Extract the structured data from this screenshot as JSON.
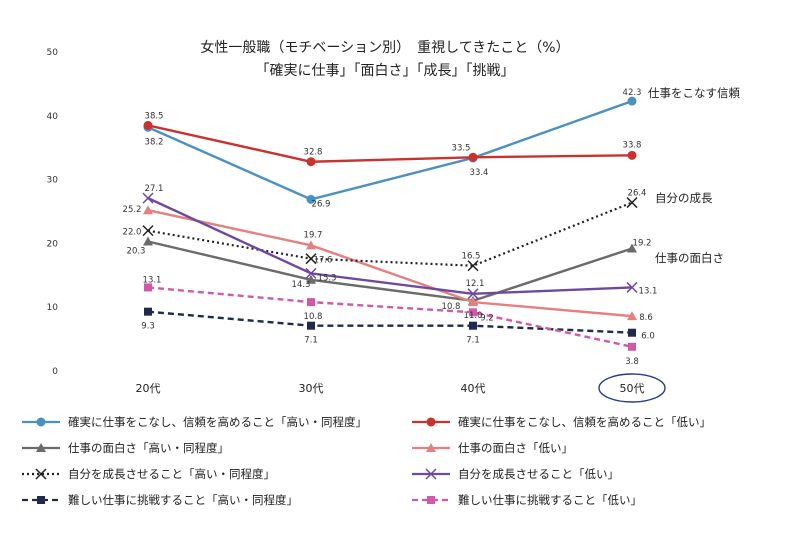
{
  "chart_data": {
    "type": "line",
    "title": "女性一般職（モチベーション別）　重視してきたこと（%）",
    "subtitle": "「確実に仕事」「面白さ」「成長」「挑戦」",
    "categories": [
      "20代",
      "30代",
      "40代",
      "50代"
    ],
    "highlighted_category": "50代",
    "ylim": [
      0,
      50
    ],
    "yticks": [
      0,
      10,
      20,
      30,
      40,
      50
    ],
    "grid": false,
    "legend_position": "bottom",
    "series": [
      {
        "name": "確実に仕事をこなし、信頼を高めること「高い・同程度」",
        "values": [
          38.2,
          26.9,
          33.4,
          42.3
        ],
        "color": "#4a90c0",
        "marker": "circle",
        "dash": "solid"
      },
      {
        "name": "確実に仕事をこなし、信頼を高めること「低い」",
        "values": [
          38.5,
          32.8,
          33.5,
          33.8
        ],
        "color": "#c9322f",
        "marker": "circle",
        "dash": "solid"
      },
      {
        "name": "仕事の面白さ「高い・同程度」",
        "values": [
          20.3,
          14.3,
          11.0,
          19.2
        ],
        "color": "#6b6b6b",
        "marker": "triangle",
        "dash": "solid"
      },
      {
        "name": "仕事の面白さ「低い」",
        "values": [
          25.2,
          19.7,
          10.8,
          8.6
        ],
        "color": "#e58080",
        "marker": "triangle",
        "dash": "solid"
      },
      {
        "name": "自分を成長させること「高い・同程度」",
        "values": [
          22.0,
          17.6,
          16.5,
          26.4
        ],
        "color": "#222222",
        "marker": "x",
        "dash": "dotted"
      },
      {
        "name": "自分を成長させること「低い」",
        "values": [
          27.1,
          15.3,
          12.1,
          13.1
        ],
        "color": "#6e4a9e",
        "marker": "x",
        "dash": "solid"
      },
      {
        "name": "難しい仕事に挑戦すること「高い・同程度」",
        "values": [
          9.3,
          7.1,
          7.1,
          6.0
        ],
        "color": "#1f2a4d",
        "marker": "square",
        "dash": "dashed"
      },
      {
        "name": "難しい仕事に挑戦すること「低い」",
        "values": [
          13.1,
          10.8,
          9.2,
          3.8
        ],
        "color": "#d05aa8",
        "marker": "square",
        "dash": "dashed"
      }
    ],
    "annotations": [
      "仕事をこなす信頼",
      "自分の成長",
      "仕事の面白さ"
    ]
  }
}
